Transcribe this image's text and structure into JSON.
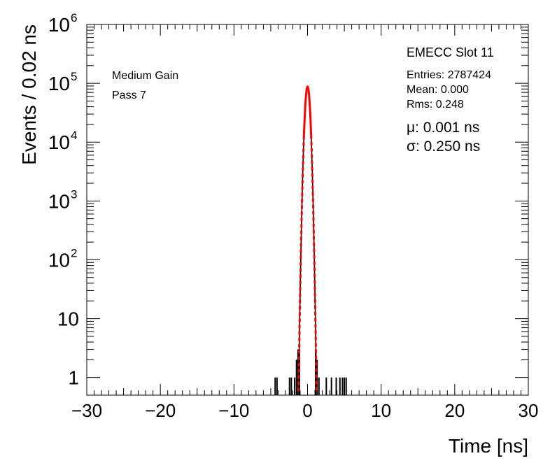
{
  "chart_data": {
    "type": "histogram",
    "xlabel": "Time [ns]",
    "ylabel": "Events / 0.02 ns",
    "xlim": [
      -30,
      30
    ],
    "ylim": [
      0.5,
      1000000
    ],
    "yscale": "log",
    "xticks": [
      {
        "value": -30,
        "label": "−30"
      },
      {
        "value": -20,
        "label": "−20"
      },
      {
        "value": -10,
        "label": "−10"
      },
      {
        "value": 0,
        "label": "0"
      },
      {
        "value": 10,
        "label": "10"
      },
      {
        "value": 20,
        "label": "20"
      },
      {
        "value": 30,
        "label": "30"
      }
    ],
    "yticks": [
      {
        "value": 1,
        "base": "1",
        "exp": ""
      },
      {
        "value": 10,
        "base": "10",
        "exp": ""
      },
      {
        "value": 100,
        "base": "10",
        "exp": "2"
      },
      {
        "value": 1000,
        "base": "10",
        "exp": "3"
      },
      {
        "value": 10000,
        "base": "10",
        "exp": "4"
      },
      {
        "value": 100000,
        "base": "10",
        "exp": "5"
      },
      {
        "value": 1000000,
        "base": "10",
        "exp": "6"
      }
    ],
    "labels_left": [
      "Medium Gain",
      "Pass 7"
    ],
    "stats": {
      "title": "EMECC Slot 11",
      "lines": [
        "Entries: 2787424",
        "Mean: 0.000",
        "Rms: 0.248"
      ],
      "fit_lines": [
        "μ: 0.001 ns",
        "σ: 0.250 ns"
      ]
    },
    "histogram": {
      "color": "#000000",
      "isolated_bins": [
        {
          "x": -4.4,
          "y": 1
        },
        {
          "x": -4.15,
          "y": 1
        },
        {
          "x": -2.45,
          "y": 1
        },
        {
          "x": -2.2,
          "y": 1
        },
        {
          "x": -1.75,
          "y": 1
        },
        {
          "x": -1.5,
          "y": 2
        },
        {
          "x": -1.3,
          "y": 3
        },
        {
          "x": -1.1,
          "y": 3
        },
        {
          "x": 1.1,
          "y": 3
        },
        {
          "x": 1.3,
          "y": 2
        },
        {
          "x": 1.55,
          "y": 1
        },
        {
          "x": 2.55,
          "y": 1
        },
        {
          "x": 3.25,
          "y": 1
        },
        {
          "x": 3.9,
          "y": 1
        },
        {
          "x": 4.4,
          "y": 1
        },
        {
          "x": 4.75,
          "y": 1
        },
        {
          "x": 5.0,
          "y": 1
        },
        {
          "x": 5.25,
          "y": 1
        }
      ]
    },
    "gaussian_fit": {
      "peak": 88000,
      "mean": 0.001,
      "sigma": 0.25,
      "color": "#ff0000"
    }
  }
}
